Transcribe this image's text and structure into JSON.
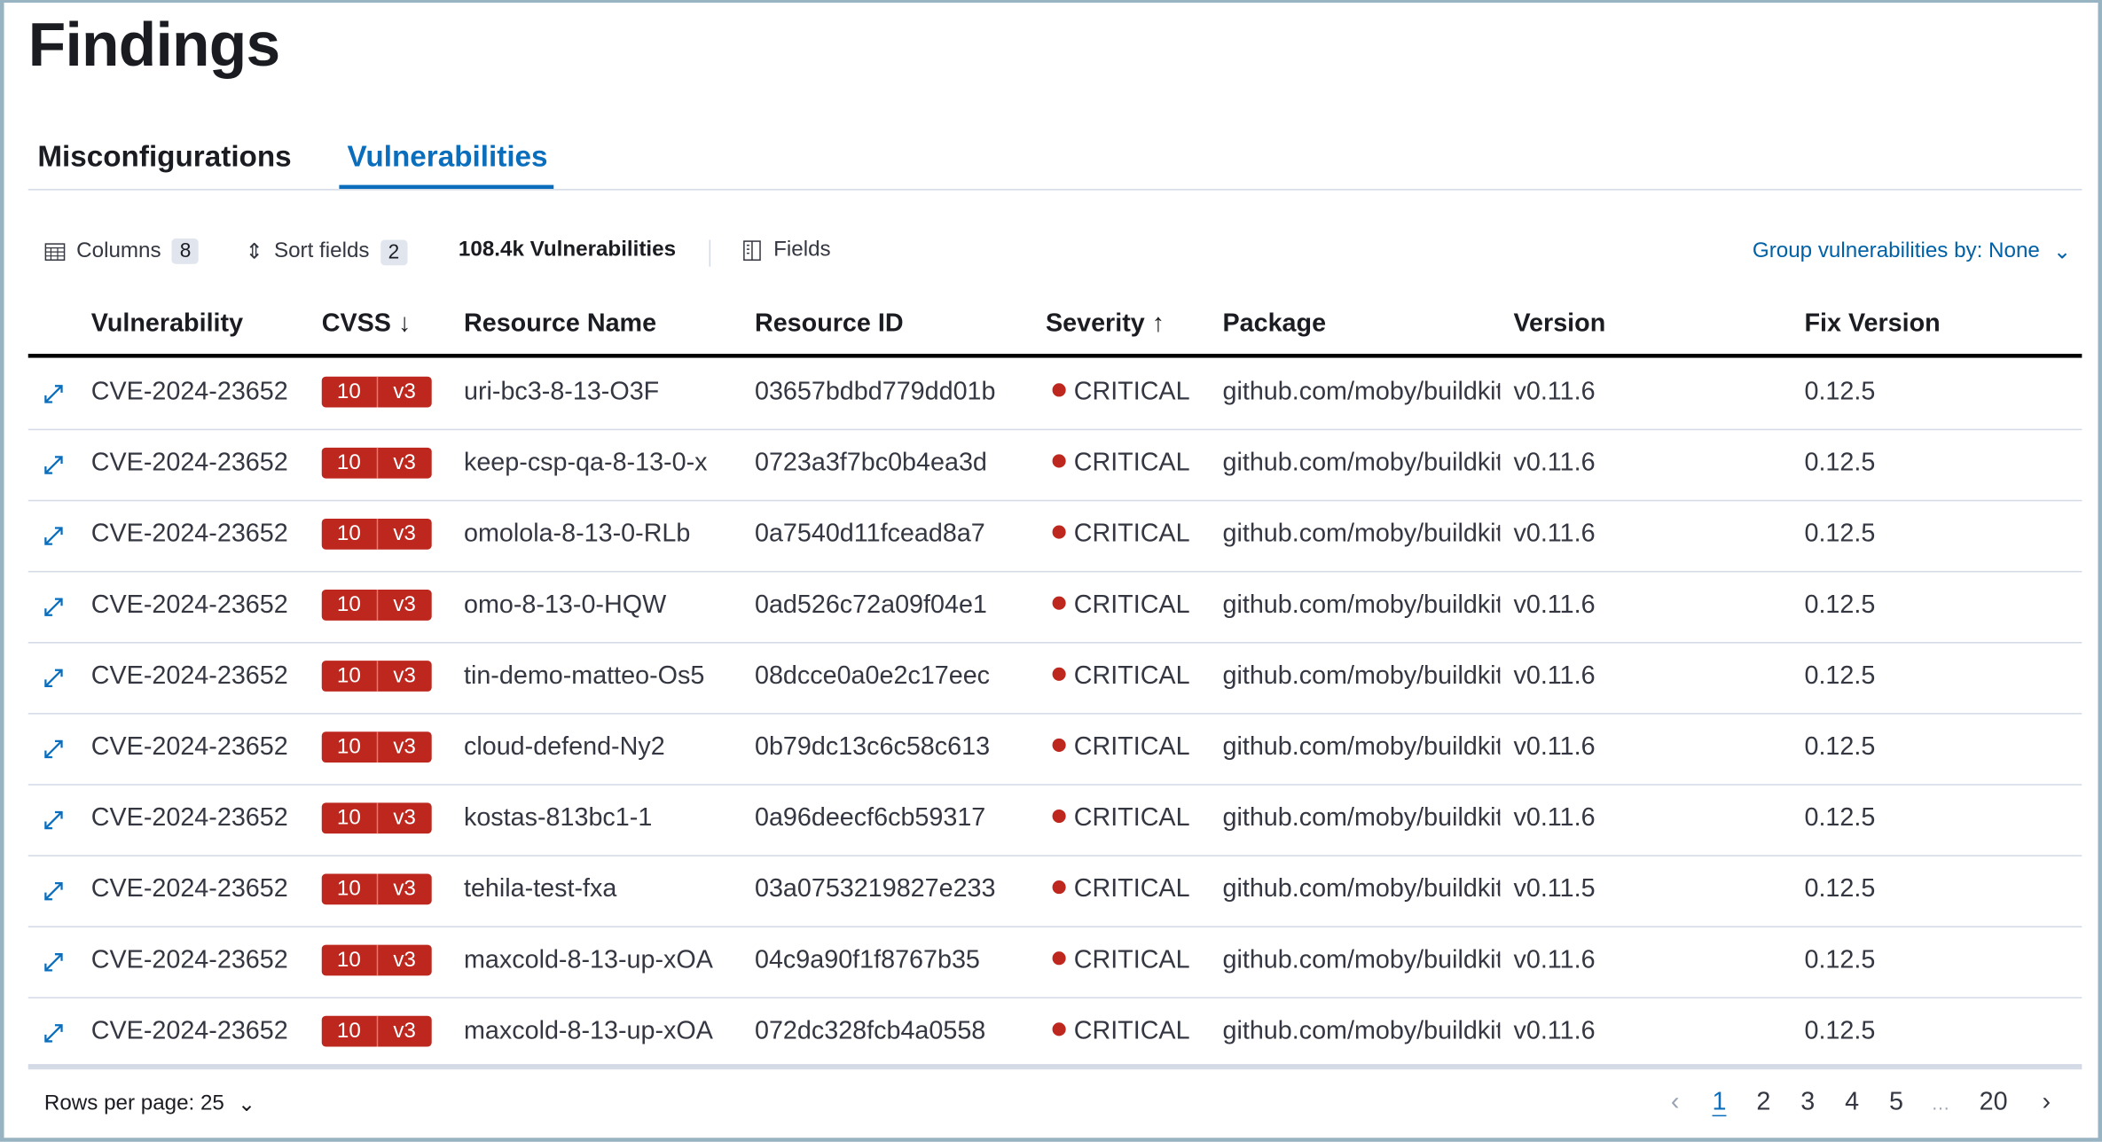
{
  "page": {
    "title": "Findings"
  },
  "tabs": [
    {
      "label": "Misconfigurations",
      "active": false
    },
    {
      "label": "Vulnerabilities",
      "active": true
    }
  ],
  "toolbar": {
    "columns_label": "Columns",
    "columns_count": "8",
    "sort_label": "Sort fields",
    "sort_count": "2",
    "total": "108.4k Vulnerabilities",
    "fields_label": "Fields",
    "group_by": "Group vulnerabilities by: None"
  },
  "columns": [
    "Vulnerability",
    "CVSS",
    "Resource Name",
    "Resource ID",
    "Severity",
    "Package",
    "Version",
    "Fix Version"
  ],
  "sort_icons": {
    "cvss": "↓",
    "severity": "↑"
  },
  "rows": [
    {
      "vuln": "CVE-2024-23652",
      "score": "10",
      "cvss_ver": "v3",
      "resource_name": "uri-bc3-8-13-O3F",
      "resource_id": "03657bdbd779dd01b",
      "severity": "CRITICAL",
      "package": "github.com/moby/buildkit",
      "version": "v0.11.6",
      "fix": "0.12.5"
    },
    {
      "vuln": "CVE-2024-23652",
      "score": "10",
      "cvss_ver": "v3",
      "resource_name": "keep-csp-qa-8-13-0-x",
      "resource_id": "0723a3f7bc0b4ea3d",
      "severity": "CRITICAL",
      "package": "github.com/moby/buildkit",
      "version": "v0.11.6",
      "fix": "0.12.5"
    },
    {
      "vuln": "CVE-2024-23652",
      "score": "10",
      "cvss_ver": "v3",
      "resource_name": "omolola-8-13-0-RLb",
      "resource_id": "0a7540d11fcead8a7",
      "severity": "CRITICAL",
      "package": "github.com/moby/buildkit",
      "version": "v0.11.6",
      "fix": "0.12.5"
    },
    {
      "vuln": "CVE-2024-23652",
      "score": "10",
      "cvss_ver": "v3",
      "resource_name": "omo-8-13-0-HQW",
      "resource_id": "0ad526c72a09f04e1",
      "severity": "CRITICAL",
      "package": "github.com/moby/buildkit",
      "version": "v0.11.6",
      "fix": "0.12.5"
    },
    {
      "vuln": "CVE-2024-23652",
      "score": "10",
      "cvss_ver": "v3",
      "resource_name": "tin-demo-matteo-Os5",
      "resource_id": "08dcce0a0e2c17eec",
      "severity": "CRITICAL",
      "package": "github.com/moby/buildkit",
      "version": "v0.11.6",
      "fix": "0.12.5"
    },
    {
      "vuln": "CVE-2024-23652",
      "score": "10",
      "cvss_ver": "v3",
      "resource_name": "cloud-defend-Ny2",
      "resource_id": "0b79dc13c6c58c613",
      "severity": "CRITICAL",
      "package": "github.com/moby/buildkit",
      "version": "v0.11.6",
      "fix": "0.12.5"
    },
    {
      "vuln": "CVE-2024-23652",
      "score": "10",
      "cvss_ver": "v3",
      "resource_name": "kostas-813bc1-1",
      "resource_id": "0a96deecf6cb59317",
      "severity": "CRITICAL",
      "package": "github.com/moby/buildkit",
      "version": "v0.11.6",
      "fix": "0.12.5"
    },
    {
      "vuln": "CVE-2024-23652",
      "score": "10",
      "cvss_ver": "v3",
      "resource_name": "tehila-test-fxa",
      "resource_id": "03a0753219827e233",
      "severity": "CRITICAL",
      "package": "github.com/moby/buildkit",
      "version": "v0.11.5",
      "fix": "0.12.5"
    },
    {
      "vuln": "CVE-2024-23652",
      "score": "10",
      "cvss_ver": "v3",
      "resource_name": "maxcold-8-13-up-xOA",
      "resource_id": "04c9a90f1f8767b35",
      "severity": "CRITICAL",
      "package": "github.com/moby/buildkit",
      "version": "v0.11.6",
      "fix": "0.12.5"
    },
    {
      "vuln": "CVE-2024-23652",
      "score": "10",
      "cvss_ver": "v3",
      "resource_name": "maxcold-8-13-up-xOA",
      "resource_id": "072dc328fcb4a0558",
      "severity": "CRITICAL",
      "package": "github.com/moby/buildkit",
      "version": "v0.11.6",
      "fix": "0.12.5"
    }
  ],
  "footer": {
    "rows_per_page": "Rows per page: 25",
    "pages": [
      "1",
      "2",
      "3",
      "4",
      "5",
      "…",
      "20"
    ],
    "current_page": "1"
  },
  "colors": {
    "accent": "#0a6ebd",
    "critical": "#bd271e"
  }
}
